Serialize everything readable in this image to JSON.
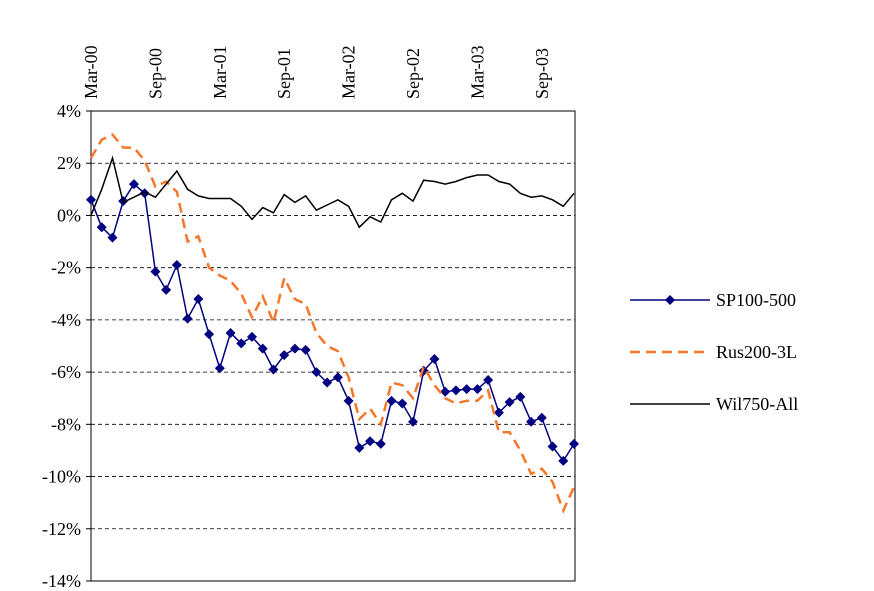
{
  "chart_data": {
    "type": "line",
    "categories": [
      "Mar-00",
      null,
      null,
      null,
      null,
      null,
      "Sep-00",
      null,
      null,
      null,
      null,
      null,
      "Mar-01",
      null,
      null,
      null,
      null,
      null,
      "Sep-01",
      null,
      null,
      null,
      null,
      null,
      "Mar-02",
      null,
      null,
      null,
      null,
      null,
      "Sep-02",
      null,
      null,
      null,
      null,
      null,
      "Mar-03",
      null,
      null,
      null,
      null,
      null,
      "Sep-03",
      null,
      null,
      null
    ],
    "series": [
      {
        "name": "SP100-500",
        "color": "#000080",
        "line_style": "solid",
        "marker": "diamond",
        "values": [
          0.6,
          -0.45,
          -0.85,
          0.55,
          1.2,
          0.85,
          -2.15,
          -2.85,
          -1.9,
          -3.95,
          -3.2,
          -4.55,
          -5.85,
          -4.5,
          -4.9,
          -4.65,
          -5.1,
          -5.9,
          -5.35,
          -5.1,
          -5.15,
          -6.0,
          -6.4,
          -6.2,
          -7.1,
          -8.9,
          -8.65,
          -8.75,
          -7.1,
          -7.2,
          -7.9,
          -5.95,
          -5.5,
          -6.75,
          -6.7,
          -6.65,
          -6.65,
          -6.3,
          -7.55,
          -7.15,
          -6.95,
          -7.9,
          -7.75,
          -8.85,
          -9.4,
          -8.75
        ]
      },
      {
        "name": "Rus200-3L",
        "color": "#f5782a",
        "line_style": "dashed",
        "marker": "none",
        "values": [
          2.2,
          2.9,
          3.1,
          2.6,
          2.6,
          2.1,
          1.1,
          1.3,
          0.9,
          -1.0,
          -0.8,
          -2.0,
          -2.3,
          -2.5,
          -3.0,
          -3.9,
          -3.1,
          -4.1,
          -2.4,
          -3.2,
          -3.4,
          -4.5,
          -5.0,
          -5.2,
          -6.2,
          -7.8,
          -7.4,
          -8.0,
          -6.4,
          -6.5,
          -7.0,
          -5.8,
          -6.5,
          -7.0,
          -7.2,
          -7.1,
          -7.1,
          -6.7,
          -8.3,
          -8.3,
          -9.0,
          -9.9,
          -9.7,
          -10.2,
          -11.3,
          -10.4
        ]
      },
      {
        "name": "Wil750-All",
        "color": "#000000",
        "line_style": "solid",
        "marker": "none",
        "values": [
          0.0,
          1.0,
          2.2,
          0.5,
          0.7,
          0.9,
          0.7,
          1.2,
          1.7,
          1.0,
          0.75,
          0.65,
          0.65,
          0.65,
          0.35,
          -0.15,
          0.3,
          0.1,
          0.8,
          0.5,
          0.75,
          0.2,
          0.4,
          0.6,
          0.35,
          -0.45,
          -0.05,
          -0.25,
          0.6,
          0.85,
          0.55,
          1.35,
          1.3,
          1.2,
          1.3,
          1.45,
          1.55,
          1.55,
          1.3,
          1.2,
          0.85,
          0.7,
          0.75,
          0.6,
          0.35,
          0.85
        ]
      }
    ],
    "ylim": [
      -14,
      4
    ],
    "yticks": [
      {
        "value": -14,
        "label": "-14%"
      },
      {
        "value": -12,
        "label": "-12%"
      },
      {
        "value": -10,
        "label": "-10%"
      },
      {
        "value": -8,
        "label": "-8%"
      },
      {
        "value": -6,
        "label": "-6%"
      },
      {
        "value": -4,
        "label": "-4%"
      },
      {
        "value": -2,
        "label": "-2%"
      },
      {
        "value": 0,
        "label": "0%"
      },
      {
        "value": 2,
        "label": "2%"
      },
      {
        "value": 4,
        "label": "4%"
      }
    ],
    "grid": true,
    "legend": "right"
  }
}
